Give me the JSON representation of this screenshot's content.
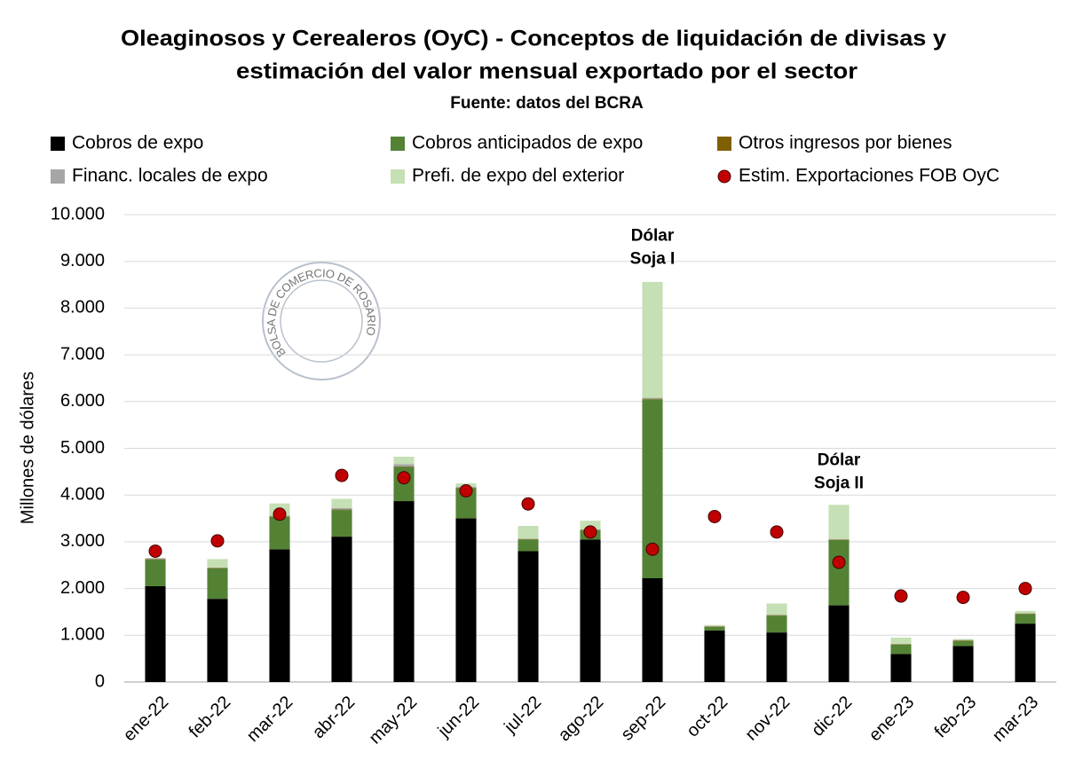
{
  "chart_data": {
    "type": "bar",
    "stacked": true,
    "title": [
      "Oleaginosos y Cerealeros (OyC) - Conceptos de liquidación de divisas y",
      "estimación del valor mensual exportado por el sector"
    ],
    "subtitle": "Fuente: datos del BCRA",
    "y_label": "Millones de dólares",
    "watermark": "BOLSA DE COMERCIO DE ROSARIO",
    "categories": [
      "ene-22",
      "feb-22",
      "mar-22",
      "abr-22",
      "may-22",
      "jun-22",
      "jul-22",
      "ago-22",
      "sep-22",
      "oct-22",
      "nov-22",
      "dic-22",
      "ene-23",
      "feb-23",
      "mar-23"
    ],
    "series": [
      {
        "name": "Cobros de expo",
        "color": "#000000",
        "values": [
          2050,
          1780,
          2840,
          3110,
          3870,
          3500,
          2800,
          3050,
          2220,
          1100,
          1060,
          1640,
          600,
          770,
          1250
        ]
      },
      {
        "name": "Cobros anticipados de expo",
        "color": "#548235",
        "values": [
          570,
          650,
          690,
          570,
          730,
          650,
          250,
          200,
          3830,
          80,
          360,
          1400,
          200,
          110,
          200
        ]
      },
      {
        "name": "Otros ingresos por bienes",
        "color": "#7f6000",
        "values": [
          10,
          10,
          10,
          10,
          10,
          10,
          10,
          10,
          10,
          10,
          10,
          10,
          10,
          10,
          10
        ]
      },
      {
        "name": "Financ. locales de expo",
        "color": "#a6a6a6",
        "values": [
          20,
          10,
          20,
          30,
          50,
          20,
          10,
          10,
          20,
          10,
          10,
          10,
          10,
          10,
          10
        ]
      },
      {
        "name": "Prefi. de expo del exterior",
        "color": "#c5e0b4",
        "values": [
          0,
          180,
          260,
          200,
          160,
          70,
          270,
          180,
          2480,
          20,
          240,
          730,
          130,
          20,
          50
        ]
      },
      {
        "name": "Estim. Exportaciones FOB OyC",
        "type": "scatter",
        "color": "#c00000",
        "values": [
          2800,
          3020,
          3590,
          4420,
          4370,
          4090,
          3810,
          3210,
          2840,
          3540,
          3210,
          2560,
          1840,
          1810,
          2000
        ]
      }
    ],
    "annotations": [
      {
        "x": "sep-22",
        "lines": [
          "Dólar",
          "Soja I"
        ],
        "y": 9100
      },
      {
        "x": "dic-22",
        "lines": [
          "Dólar",
          "Soja II"
        ],
        "y": 4300
      }
    ],
    "ylim": [
      0,
      10000
    ],
    "yticks": [
      0,
      {
        "value": 1000,
        "label": "1.000"
      },
      {
        "value": 2000,
        "label": "2.000"
      },
      {
        "value": 3000,
        "label": "3.000"
      },
      {
        "value": 4000,
        "label": "4.000"
      },
      {
        "value": 5000,
        "label": "5.000"
      },
      {
        "value": 6000,
        "label": "6.000"
      },
      {
        "value": 7000,
        "label": "7.000"
      },
      {
        "value": 8000,
        "label": "8.000"
      },
      {
        "value": 9000,
        "label": "9.000"
      },
      {
        "value": 10000,
        "label": "10.000"
      }
    ],
    "grid": true,
    "legend": "top"
  }
}
